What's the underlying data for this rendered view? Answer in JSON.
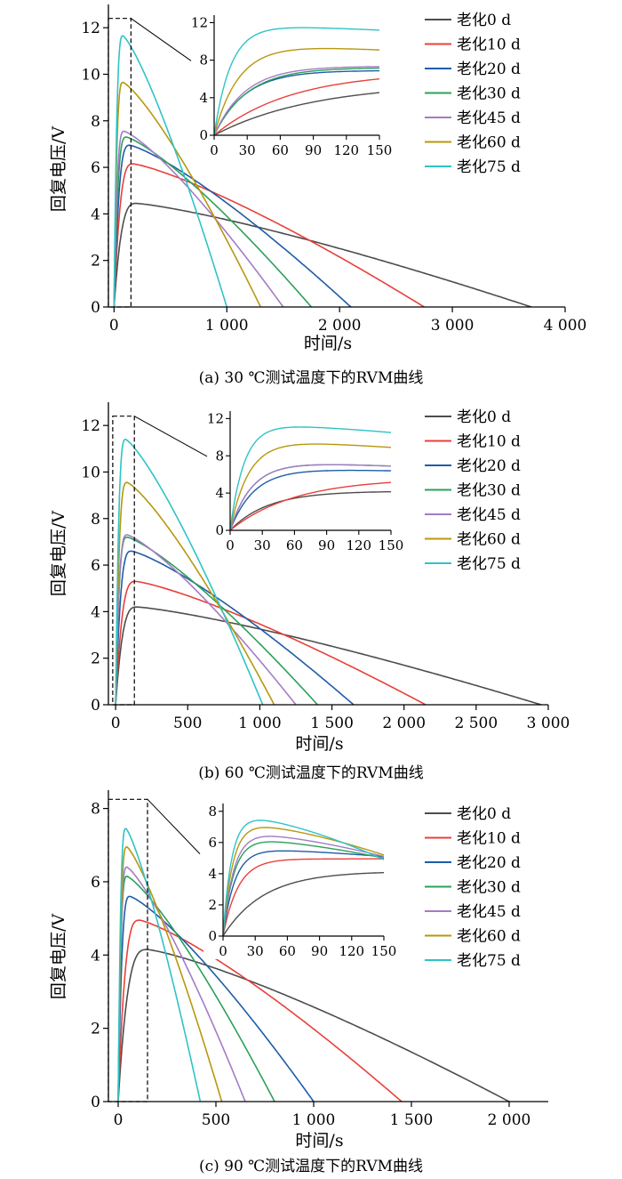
{
  "colors": {
    "老化0 d": "#4d4d4d",
    "老化10 d": "#e8403a",
    "老化20 d": "#1f5ca8",
    "老化30 d": "#2ca05a",
    "老化45 d": "#a37cc4",
    "老化60 d": "#b8970e",
    "老化75 d": "#2fc3c6"
  },
  "chart_data": [
    {
      "type": "line",
      "caption": "(a)  30 ℃测试温度下的RVM曲线",
      "xlabel": "时间/s",
      "ylabel": "回复电压/V",
      "xlim": [
        -50,
        4000
      ],
      "ylim": [
        0,
        13
      ],
      "xticks": [
        0,
        1000,
        2000,
        3000,
        4000
      ],
      "xtick_labels": [
        "0",
        "1 000",
        "2 000",
        "3 000",
        "4 000"
      ],
      "yticks": [
        0,
        2,
        4,
        6,
        8,
        10,
        12
      ],
      "ytick_labels": [
        "0",
        "2",
        "4",
        "6",
        "8",
        "10",
        "12"
      ],
      "zoom_box": {
        "x": [
          -50,
          150
        ],
        "y": [
          0,
          12.4
        ]
      },
      "series": [
        {
          "name": "老化0 d",
          "peak_t": 200,
          "peak_v": 4.45,
          "end_t": 3700
        },
        {
          "name": "老化10 d",
          "peak_t": 170,
          "peak_v": 6.15,
          "end_t": 2750
        },
        {
          "name": "老化20 d",
          "peak_t": 140,
          "peak_v": 6.95,
          "end_t": 2100
        },
        {
          "name": "老化30 d",
          "peak_t": 110,
          "peak_v": 7.3,
          "end_t": 1750
        },
        {
          "name": "老化45 d",
          "peak_t": 90,
          "peak_v": 7.55,
          "end_t": 1500
        },
        {
          "name": "老化60 d",
          "peak_t": 80,
          "peak_v": 9.65,
          "end_t": 1300
        },
        {
          "name": "老化75 d",
          "peak_t": 80,
          "peak_v": 11.65,
          "end_t": 1000
        }
      ],
      "inset": {
        "xlim": [
          0,
          150
        ],
        "ylim": [
          0,
          12.8
        ],
        "xticks": [
          0,
          30,
          60,
          90,
          120,
          150
        ],
        "xtick_labels": [
          "0",
          "30",
          "60",
          "90",
          "120",
          "150"
        ],
        "yticks": [
          0,
          4,
          8,
          12
        ],
        "ytick_labels": [
          "0",
          "4",
          "8",
          "12"
        ],
        "series": [
          {
            "name": "老化0 d",
            "tau": 90,
            "level": 5.6,
            "decay": 0
          },
          {
            "name": "老化10 d",
            "tau": 70,
            "level": 6.8,
            "decay": 0
          },
          {
            "name": "老化20 d",
            "tau": 28,
            "level": 6.9,
            "decay": 0
          },
          {
            "name": "老化30 d",
            "tau": 30,
            "level": 7.2,
            "decay": 0
          },
          {
            "name": "老化45 d",
            "tau": 28,
            "level": 7.35,
            "decay": 0
          },
          {
            "name": "老化60 d",
            "tau": 22,
            "level": 9.6,
            "decay": 0.5
          },
          {
            "name": "老化75 d",
            "tau": 15,
            "level": 11.7,
            "decay": 0.5
          }
        ]
      }
    },
    {
      "type": "line",
      "caption": "(b)  60 ℃测试温度下的RVM曲线",
      "xlabel": "时间/s",
      "ylabel": "回复电压/V",
      "xlim": [
        -50,
        3000
      ],
      "ylim": [
        0,
        13
      ],
      "xticks": [
        0,
        500,
        1000,
        1500,
        2000,
        2500,
        3000
      ],
      "xtick_labels": [
        "0",
        "500",
        "1 000",
        "1 500",
        "2 000",
        "2 500",
        "3 000"
      ],
      "yticks": [
        0,
        2,
        4,
        6,
        8,
        10,
        12
      ],
      "ytick_labels": [
        "0",
        "2",
        "4",
        "6",
        "8",
        "10",
        "12"
      ],
      "zoom_box": {
        "x": [
          -20,
          130
        ],
        "y": [
          0,
          12.4
        ]
      },
      "series": [
        {
          "name": "老化0 d",
          "peak_t": 150,
          "peak_v": 4.2,
          "end_t": 2950
        },
        {
          "name": "老化10 d",
          "peak_t": 140,
          "peak_v": 5.3,
          "end_t": 2150
        },
        {
          "name": "老化20 d",
          "peak_t": 110,
          "peak_v": 6.6,
          "end_t": 1650
        },
        {
          "name": "老化30 d",
          "peak_t": 80,
          "peak_v": 7.2,
          "end_t": 1400
        },
        {
          "name": "老化45 d",
          "peak_t": 80,
          "peak_v": 7.3,
          "end_t": 1250
        },
        {
          "name": "老化60 d",
          "peak_t": 80,
          "peak_v": 9.55,
          "end_t": 1100
        },
        {
          "name": "老化75 d",
          "peak_t": 70,
          "peak_v": 11.4,
          "end_t": 1020
        }
      ],
      "inset": {
        "xlim": [
          0,
          150
        ],
        "ylim": [
          0,
          12.8
        ],
        "xticks": [
          0,
          30,
          60,
          90,
          120,
          150
        ],
        "xtick_labels": [
          "0",
          "30",
          "60",
          "90",
          "120",
          "150"
        ],
        "yticks": [
          0,
          4,
          8,
          12
        ],
        "ytick_labels": [
          "0",
          "4",
          "8",
          "12"
        ],
        "series": [
          {
            "name": "老化0 d",
            "tau": 35,
            "level": 4.2,
            "decay": 0
          },
          {
            "name": "老化10 d",
            "tau": 60,
            "level": 5.6,
            "decay": 0
          },
          {
            "name": "老化20 d",
            "tau": 22,
            "level": 6.6,
            "decay": 0.2
          },
          {
            "name": "老化30 d",
            "tau": 20,
            "level": 7.3,
            "decay": 0.4
          },
          {
            "name": "老化45 d",
            "tau": 20,
            "level": 7.3,
            "decay": 0.4
          },
          {
            "name": "老化60 d",
            "tau": 17,
            "level": 9.6,
            "decay": 0.7
          },
          {
            "name": "老化75 d",
            "tau": 13,
            "level": 11.4,
            "decay": 0.9
          }
        ]
      }
    },
    {
      "type": "line",
      "caption": "(c)  90 ℃测试温度下的RVM曲线",
      "xlabel": "时间/s",
      "ylabel": "回复电压/V",
      "xlim": [
        -50,
        2200
      ],
      "ylim": [
        0,
        8.5
      ],
      "xticks": [
        0,
        500,
        1000,
        1500,
        2000
      ],
      "xtick_labels": [
        "0",
        "500",
        "1 000",
        "1 500",
        "2 000"
      ],
      "yticks": [
        0,
        2,
        4,
        6,
        8
      ],
      "ytick_labels": [
        "0",
        "2",
        "4",
        "6",
        "8"
      ],
      "zoom_box": {
        "x": [
          -50,
          150
        ],
        "y": [
          0,
          8.25
        ]
      },
      "series": [
        {
          "name": "老化0 d",
          "peak_t": 150,
          "peak_v": 4.15,
          "end_t": 2000
        },
        {
          "name": "老化10 d",
          "peak_t": 110,
          "peak_v": 4.95,
          "end_t": 1450
        },
        {
          "name": "老化20 d",
          "peak_t": 60,
          "peak_v": 5.6,
          "end_t": 1000
        },
        {
          "name": "老化30 d",
          "peak_t": 45,
          "peak_v": 6.15,
          "end_t": 800
        },
        {
          "name": "老化45 d",
          "peak_t": 45,
          "peak_v": 6.4,
          "end_t": 650
        },
        {
          "name": "老化60 d",
          "peak_t": 45,
          "peak_v": 6.95,
          "end_t": 530
        },
        {
          "name": "老化75 d",
          "peak_t": 40,
          "peak_v": 7.45,
          "end_t": 420
        }
      ],
      "inset": {
        "xlim": [
          0,
          150
        ],
        "ylim": [
          0,
          8.5
        ],
        "xticks": [
          0,
          30,
          60,
          90,
          120,
          150
        ],
        "xtick_labels": [
          "0",
          "30",
          "60",
          "90",
          "120",
          "150"
        ],
        "yticks": [
          0,
          2,
          4,
          6,
          8
        ],
        "ytick_labels": [
          "0",
          "2",
          "4",
          "6",
          "8"
        ],
        "series": [
          {
            "name": "老化0 d",
            "tau": 38,
            "level": 4.15,
            "decay": 0
          },
          {
            "name": "老化10 d",
            "tau": 14,
            "level": 4.95,
            "decay": 0
          },
          {
            "name": "老化20 d",
            "tau": 11,
            "level": 5.6,
            "decay": 0.5
          },
          {
            "name": "老化30 d",
            "tau": 10,
            "level": 6.3,
            "decay": 1.3
          },
          {
            "name": "老化45 d",
            "tau": 10,
            "level": 6.7,
            "decay": 1.6
          },
          {
            "name": "老化60 d",
            "tau": 9,
            "level": 7.3,
            "decay": 2.1
          },
          {
            "name": "老化75 d",
            "tau": 8,
            "level": 7.8,
            "decay": 2.9
          }
        ]
      }
    }
  ]
}
